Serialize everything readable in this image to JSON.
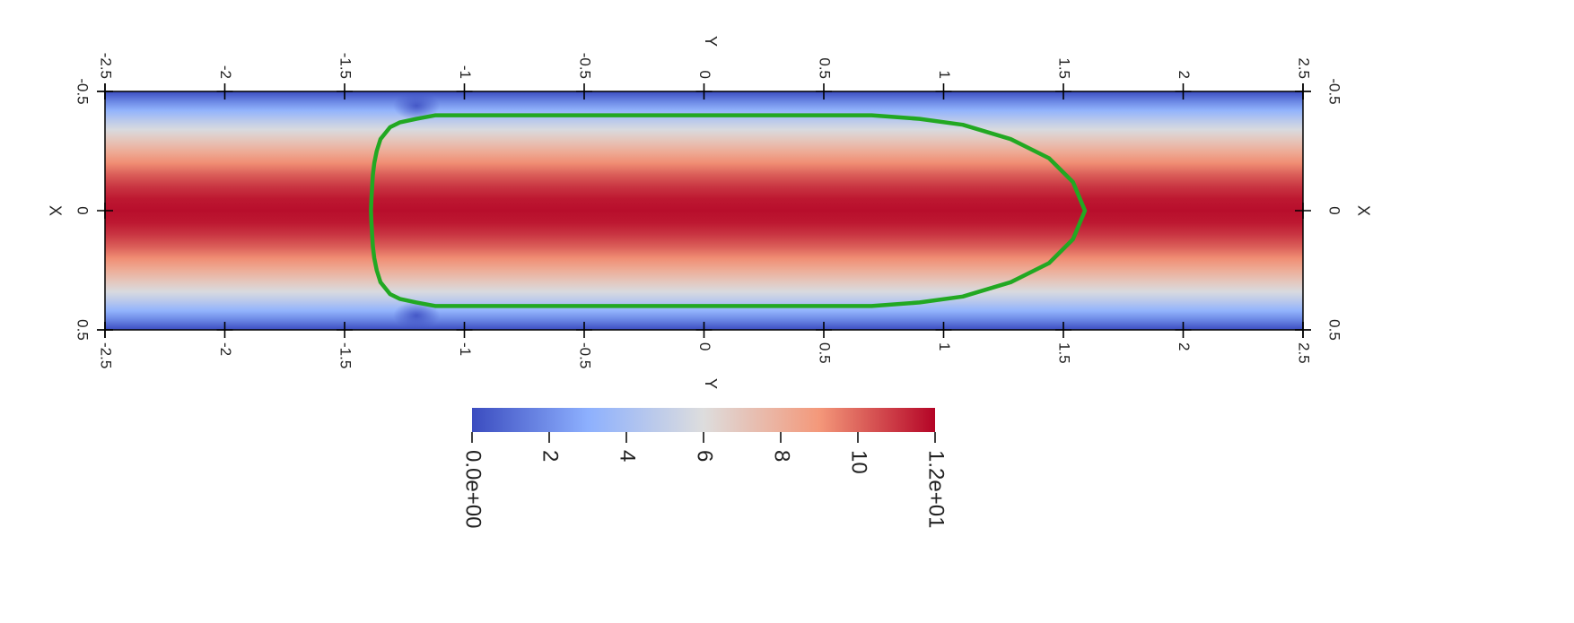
{
  "chart_data": {
    "type": "heatmap",
    "title": "",
    "field_range": [
      0,
      12
    ],
    "colormap": [
      "#3b4cc0",
      "#8db0fe",
      "#dddddd",
      "#f4987a",
      "#b40426"
    ],
    "field_profile": {
      "x": [
        -0.5,
        -0.46,
        -0.42,
        -0.38,
        -0.34,
        -0.3,
        -0.25,
        -0.2,
        -0.15,
        -0.1,
        -0.05,
        0,
        0.05,
        0.1,
        0.15,
        0.2,
        0.25,
        0.3,
        0.34,
        0.38,
        0.42,
        0.46,
        0.5
      ],
      "value": [
        0.0,
        1.7,
        3.2,
        4.6,
        5.8,
        6.9,
        8.1,
        9.2,
        10.2,
        11.0,
        11.6,
        11.8,
        11.6,
        11.0,
        10.2,
        9.2,
        8.1,
        6.9,
        5.8,
        4.6,
        3.2,
        1.7,
        0.0
      ]
    },
    "x_axis": {
      "label": "X",
      "range": [
        -0.5,
        0.5
      ],
      "ticks": [
        "-0.5",
        "0",
        "0.5"
      ]
    },
    "y_axis": {
      "label": "Y",
      "range": [
        -2.5,
        2.5
      ],
      "ticks": [
        "-2.5",
        "-2",
        "-1.5",
        "-1",
        "-0.5",
        "0",
        "0.5",
        "1",
        "1.5",
        "2",
        "2.5"
      ]
    },
    "contour": {
      "color": "#22a822",
      "x": [
        0.0,
        -0.05,
        -0.1,
        -0.15,
        -0.2,
        -0.25,
        -0.3,
        -0.35,
        -0.37,
        -0.385,
        -0.4,
        -0.4,
        -0.4,
        -0.4,
        -0.385,
        -0.36,
        -0.3,
        -0.22,
        -0.12,
        0.0,
        0.12,
        0.22,
        0.3,
        0.36,
        0.385,
        0.4,
        0.4,
        0.4,
        0.4,
        0.385,
        0.37,
        0.35,
        0.3,
        0.25,
        0.2,
        0.15,
        0.1,
        0.05,
        0.0
      ],
      "y": [
        -1.39,
        -1.388,
        -1.385,
        -1.382,
        -1.376,
        -1.366,
        -1.35,
        -1.31,
        -1.27,
        -1.2,
        -1.12,
        -1.0,
        0.0,
        0.7,
        0.9,
        1.08,
        1.28,
        1.44,
        1.54,
        1.59,
        1.54,
        1.44,
        1.28,
        1.08,
        0.9,
        0.7,
        0.0,
        -1.0,
        -1.12,
        -1.2,
        -1.27,
        -1.31,
        -1.35,
        -1.366,
        -1.376,
        -1.382,
        -1.385,
        -1.388,
        -1.39
      ]
    },
    "colorbar": {
      "range": [
        0,
        12
      ],
      "ticks": [
        {
          "value": 0,
          "label": "0.0e+00"
        },
        {
          "value": 2,
          "label": "2"
        },
        {
          "value": 4,
          "label": "4"
        },
        {
          "value": 6,
          "label": "6"
        },
        {
          "value": 8,
          "label": "8"
        },
        {
          "value": 10,
          "label": "10"
        },
        {
          "value": 12,
          "label": "1.2e+01"
        }
      ]
    }
  }
}
